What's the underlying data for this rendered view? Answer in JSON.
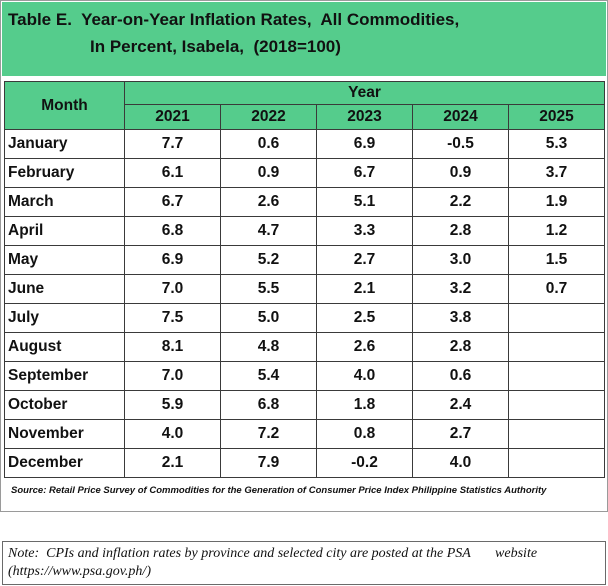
{
  "title": {
    "line1": "Table E.  Year-on-Year Inflation Rates,  All Commodities,",
    "line2": "In Percent, Isabela,  (2018=100)"
  },
  "table": {
    "month_header": "Month",
    "year_header": "Year",
    "years": [
      "2021",
      "2022",
      "2023",
      "2024",
      "2025"
    ],
    "rows": [
      {
        "month": "January",
        "values": [
          "7.7",
          "0.6",
          "6.9",
          "-0.5",
          "5.3"
        ]
      },
      {
        "month": "February",
        "values": [
          "6.1",
          "0.9",
          "6.7",
          "0.9",
          "3.7"
        ]
      },
      {
        "month": "March",
        "values": [
          "6.7",
          "2.6",
          "5.1",
          "2.2",
          "1.9"
        ]
      },
      {
        "month": "April",
        "values": [
          "6.8",
          "4.7",
          "3.3",
          "2.8",
          "1.2"
        ]
      },
      {
        "month": "May",
        "values": [
          "6.9",
          "5.2",
          "2.7",
          "3.0",
          "1.5"
        ]
      },
      {
        "month": "June",
        "values": [
          "7.0",
          "5.5",
          "2.1",
          "3.2",
          "0.7"
        ]
      },
      {
        "month": "July",
        "values": [
          "7.5",
          "5.0",
          "2.5",
          "3.8",
          ""
        ]
      },
      {
        "month": "August",
        "values": [
          "8.1",
          "4.8",
          "2.6",
          "2.8",
          ""
        ]
      },
      {
        "month": "September",
        "values": [
          "7.0",
          "5.4",
          "4.0",
          "0.6",
          ""
        ]
      },
      {
        "month": "October",
        "values": [
          "5.9",
          "6.8",
          "1.8",
          "2.4",
          ""
        ]
      },
      {
        "month": "November",
        "values": [
          "4.0",
          "7.2",
          "0.8",
          "2.7",
          ""
        ]
      },
      {
        "month": "December",
        "values": [
          "2.1",
          "7.9",
          "-0.2",
          "4.0",
          ""
        ]
      }
    ]
  },
  "source": "Source: Retail Price Survey of Commodities for the Generation of  Consumer Price Index Philippine Statistics Authority",
  "note": {
    "line1": "Note:  CPIs and inflation rates by province and selected city are posted at the PSA       website",
    "line2": "(https://www.psa.gov.ph/)"
  },
  "colors": {
    "header_green": "#55cc8c",
    "border": "#3a3a3a"
  }
}
